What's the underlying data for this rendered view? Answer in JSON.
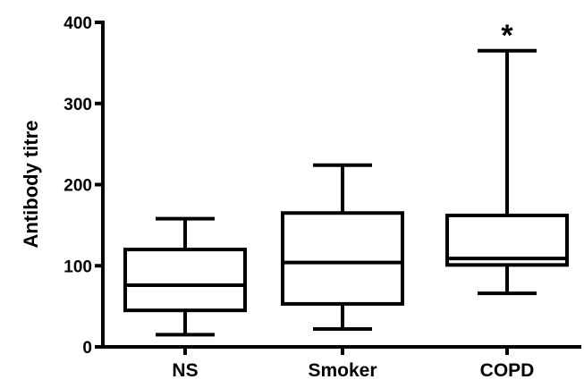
{
  "chart_data": {
    "type": "box",
    "title": "",
    "xlabel": "",
    "ylabel": "Antibody titre",
    "ylim": [
      0,
      400
    ],
    "yticks": [
      0,
      100,
      200,
      300,
      400
    ],
    "ytick_labels": [
      "0",
      "100",
      "200",
      "300",
      "400"
    ],
    "grid": false,
    "categories": [
      "NS",
      "Smoker",
      "COPD"
    ],
    "boxes": [
      {
        "category": "NS",
        "min": 15,
        "q1": 45,
        "median": 76,
        "q3": 120,
        "max": 158
      },
      {
        "category": "Smoker",
        "min": 22,
        "q1": 53,
        "median": 104,
        "q3": 165,
        "max": 224
      },
      {
        "category": "COPD",
        "min": 66,
        "q1": 101,
        "median": 109,
        "q3": 162,
        "max": 365
      }
    ],
    "annotations": [
      {
        "category": "COPD",
        "text": "*"
      }
    ],
    "colors": {
      "stroke": "#000000",
      "background": "#ffffff"
    }
  }
}
